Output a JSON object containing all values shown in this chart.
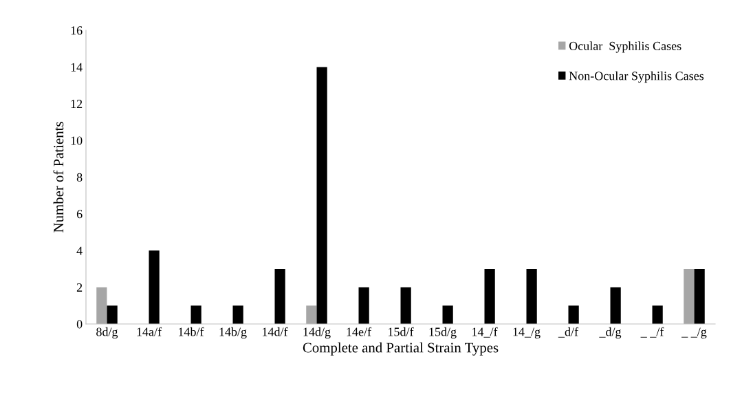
{
  "chart_data": {
    "type": "bar",
    "xlabel": "Complete and Partial Strain Types",
    "ylabel": "Number of Patients",
    "categories": [
      "8d/g",
      "14a/f",
      "14b/f",
      "14b/g",
      "14d/f",
      "14d/g",
      "14e/f",
      "15d/f",
      "15d/g",
      "14_/f",
      "14_/g",
      "_d/f",
      "_d/g",
      "_ _/f",
      "_ _/g"
    ],
    "series": [
      {
        "name": "Ocular  Syphilis Cases",
        "color": "#a6a6a6",
        "values": [
          2,
          0,
          0,
          0,
          0,
          1,
          0,
          0,
          0,
          0,
          0,
          0,
          0,
          0,
          3
        ]
      },
      {
        "name": "Non-Ocular Syphilis Cases",
        "color": "#000000",
        "values": [
          1,
          4,
          1,
          1,
          3,
          14,
          2,
          2,
          1,
          3,
          3,
          1,
          2,
          1,
          3
        ]
      }
    ],
    "ylim": [
      0,
      16
    ],
    "yticks": [
      0,
      2,
      4,
      6,
      8,
      10,
      12,
      14,
      16
    ],
    "grid": false,
    "legend": "top right"
  }
}
